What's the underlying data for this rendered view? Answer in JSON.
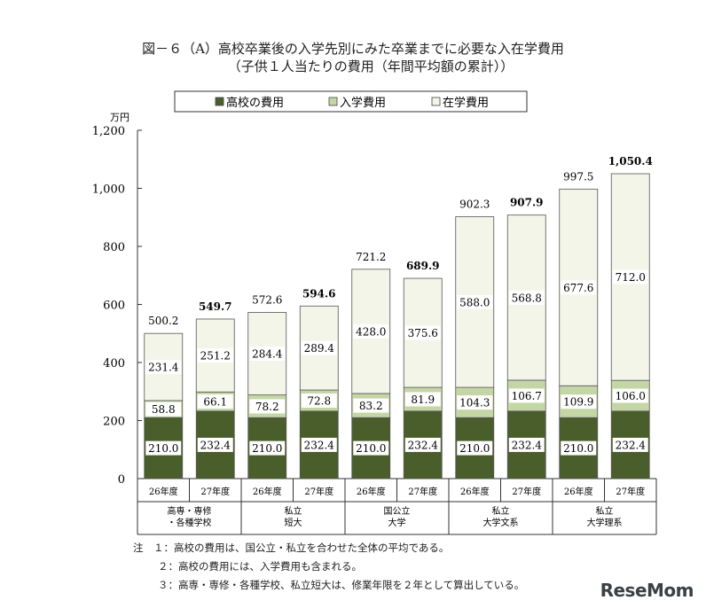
{
  "title": "図－６（A）高校卒業後の入学先別にみた卒業までに必要な入在学費用",
  "subtitle": "（子供１人当たりの費用（年間平均額の累計））",
  "notes": [
    "注　１：高校の費用は、国公立・私立を合わせた全体の平均である。",
    "２：高校の費用には、入学費用も含まれる。",
    "３：高専・専修・各種学校、私立短大は、修業年限を２年として算出している。"
  ],
  "brand": "ReseMom",
  "colors": {
    "highschool": "#4a5e2c",
    "entrance": "#c5d6a6",
    "enrollment": "#f2f5e8"
  },
  "chart_data": {
    "type": "bar",
    "stacked": true,
    "yunit": "万円",
    "ylim": [
      0,
      1200
    ],
    "yticks": [
      "0",
      "200",
      "400",
      "600",
      "800",
      "1,000",
      "1,200"
    ],
    "legend": {
      "position": "top",
      "labels": [
        "高校の費用",
        "入学費用",
        "在学費用"
      ]
    },
    "categories": [
      "26年度",
      "27年度",
      "26年度",
      "27年度",
      "26年度",
      "27年度",
      "26年度",
      "27年度",
      "26年度",
      "27年度"
    ],
    "groups": [
      "高専・専修\n・各種学校",
      "私立\n短大",
      "国公立\n大学",
      "私立\n大学文系",
      "私立\n大学理系"
    ],
    "series": [
      {
        "name": "高校の費用",
        "values": [
          210.0,
          232.4,
          210.0,
          232.4,
          210.0,
          232.4,
          210.0,
          232.4,
          210.0,
          232.4
        ],
        "labels": [
          "210.0",
          "232.4",
          "210.0",
          "232.4",
          "210.0",
          "232.4",
          "210.0",
          "232.4",
          "210.0",
          "232.4"
        ]
      },
      {
        "name": "入学費用",
        "values": [
          58.8,
          66.1,
          78.2,
          72.8,
          83.2,
          81.9,
          104.3,
          106.7,
          109.9,
          106.0
        ],
        "labels": [
          "58.8",
          "66.1",
          "78.2",
          "72.8",
          "83.2",
          "81.9",
          "104.3",
          "106.7",
          "109.9",
          "106.0"
        ]
      },
      {
        "name": "在学費用",
        "values": [
          231.4,
          251.2,
          284.4,
          289.4,
          428.0,
          375.6,
          588.0,
          568.8,
          677.6,
          712.0
        ],
        "labels": [
          "231.4",
          "251.2",
          "284.4",
          "289.4",
          "428.0",
          "375.6",
          "588.0",
          "568.8",
          "677.6",
          "712.0"
        ]
      }
    ],
    "totals": [
      "500.2",
      "549.7",
      "572.6",
      "594.6",
      "721.2",
      "689.9",
      "902.3",
      "907.9",
      "997.5",
      "1,050.4"
    ],
    "totals_bold": [
      false,
      true,
      false,
      true,
      false,
      true,
      false,
      true,
      false,
      true
    ]
  }
}
